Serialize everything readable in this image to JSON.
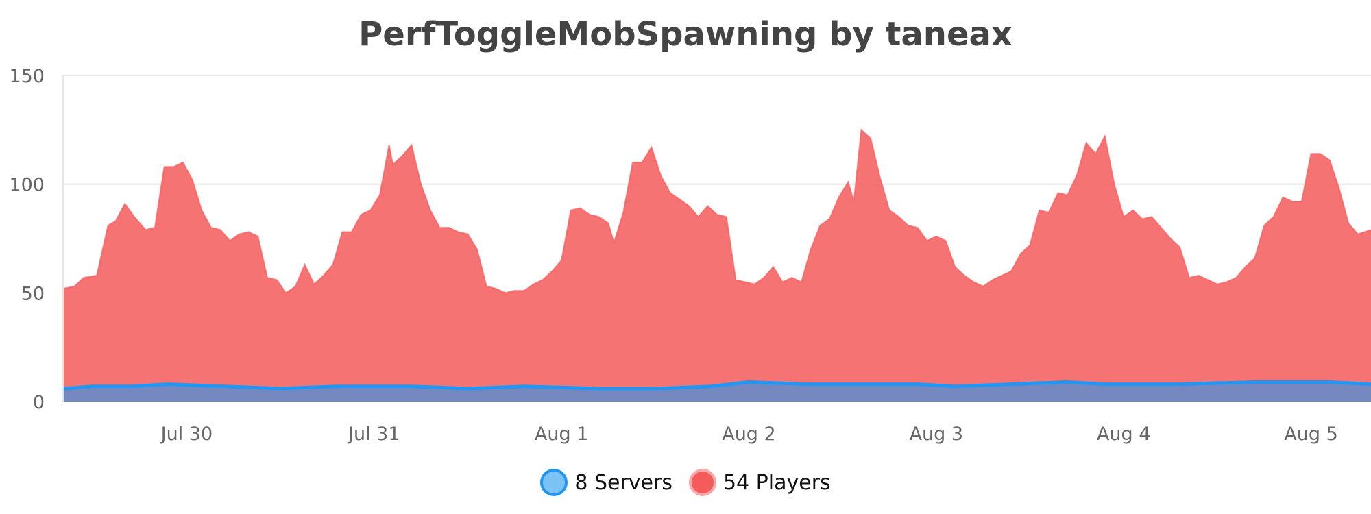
{
  "chart_data": {
    "type": "area",
    "title": "PerfToggleMobSpawning by taneax",
    "xlabel": "",
    "ylabel": "",
    "x_tick_labels": [
      "Jul 30",
      "Jul 31",
      "Aug 1",
      "Aug 2",
      "Aug 3",
      "Aug 4",
      "Aug 5"
    ],
    "x_tick_positions_days": [
      1,
      2,
      3,
      4,
      5,
      6,
      7
    ],
    "x_range_days": [
      0.34,
      7.32
    ],
    "ylim": [
      0,
      150
    ],
    "y_ticks": [
      0,
      50,
      100,
      150
    ],
    "grid": "horizontal",
    "legend_position": "bottom",
    "series": [
      {
        "name": "8 Servers",
        "color": "#2196f3",
        "fill": "rgba(33,150,243,0.6)",
        "points": [
          [
            0.34,
            6
          ],
          [
            0.5,
            7
          ],
          [
            0.7,
            7
          ],
          [
            0.9,
            8
          ],
          [
            1.2,
            7
          ],
          [
            1.5,
            6
          ],
          [
            1.8,
            7
          ],
          [
            2.2,
            7
          ],
          [
            2.5,
            6
          ],
          [
            2.8,
            7
          ],
          [
            3.2,
            6
          ],
          [
            3.5,
            6
          ],
          [
            3.8,
            7
          ],
          [
            4.0,
            9
          ],
          [
            4.3,
            8
          ],
          [
            4.6,
            8
          ],
          [
            4.9,
            8
          ],
          [
            5.1,
            7
          ],
          [
            5.4,
            8
          ],
          [
            5.7,
            9
          ],
          [
            5.9,
            8
          ],
          [
            6.3,
            8
          ],
          [
            6.7,
            9
          ],
          [
            6.9,
            9
          ],
          [
            7.1,
            9
          ],
          [
            7.32,
            8
          ]
        ]
      },
      {
        "name": "54 Players",
        "color": "#f45b5b",
        "fill": "rgba(244,91,91,0.85)",
        "points": [
          [
            0.34,
            52
          ],
          [
            0.4,
            53
          ],
          [
            0.45,
            57
          ],
          [
            0.52,
            58
          ],
          [
            0.58,
            81
          ],
          [
            0.62,
            83
          ],
          [
            0.67,
            91
          ],
          [
            0.72,
            85
          ],
          [
            0.78,
            79
          ],
          [
            0.83,
            80
          ],
          [
            0.88,
            108
          ],
          [
            0.93,
            108
          ],
          [
            0.98,
            110
          ],
          [
            1.03,
            102
          ],
          [
            1.08,
            88
          ],
          [
            1.13,
            80
          ],
          [
            1.18,
            79
          ],
          [
            1.23,
            74
          ],
          [
            1.28,
            77
          ],
          [
            1.33,
            78
          ],
          [
            1.38,
            76
          ],
          [
            1.43,
            57
          ],
          [
            1.48,
            56
          ],
          [
            1.53,
            50
          ],
          [
            1.58,
            53
          ],
          [
            1.63,
            63
          ],
          [
            1.68,
            54
          ],
          [
            1.73,
            58
          ],
          [
            1.78,
            63
          ],
          [
            1.83,
            78
          ],
          [
            1.88,
            78
          ],
          [
            1.93,
            86
          ],
          [
            1.98,
            88
          ],
          [
            2.03,
            95
          ],
          [
            2.08,
            118
          ],
          [
            2.1,
            109
          ],
          [
            2.15,
            113
          ],
          [
            2.2,
            118
          ],
          [
            2.25,
            100
          ],
          [
            2.3,
            88
          ],
          [
            2.35,
            80
          ],
          [
            2.4,
            80
          ],
          [
            2.45,
            78
          ],
          [
            2.5,
            77
          ],
          [
            2.55,
            70
          ],
          [
            2.6,
            53
          ],
          [
            2.65,
            52
          ],
          [
            2.7,
            50
          ],
          [
            2.75,
            51
          ],
          [
            2.8,
            51
          ],
          [
            2.85,
            54
          ],
          [
            2.9,
            56
          ],
          [
            2.95,
            60
          ],
          [
            3.0,
            65
          ],
          [
            3.05,
            88
          ],
          [
            3.1,
            89
          ],
          [
            3.15,
            86
          ],
          [
            3.2,
            85
          ],
          [
            3.25,
            82
          ],
          [
            3.28,
            73
          ],
          [
            3.33,
            87
          ],
          [
            3.38,
            110
          ],
          [
            3.43,
            110
          ],
          [
            3.48,
            117
          ],
          [
            3.53,
            104
          ],
          [
            3.58,
            96
          ],
          [
            3.63,
            93
          ],
          [
            3.68,
            90
          ],
          [
            3.73,
            85
          ],
          [
            3.78,
            90
          ],
          [
            3.83,
            86
          ],
          [
            3.88,
            85
          ],
          [
            3.93,
            56
          ],
          [
            3.98,
            55
          ],
          [
            4.03,
            54
          ],
          [
            4.08,
            57
          ],
          [
            4.13,
            62
          ],
          [
            4.18,
            55
          ],
          [
            4.23,
            57
          ],
          [
            4.28,
            55
          ],
          [
            4.33,
            70
          ],
          [
            4.38,
            81
          ],
          [
            4.43,
            84
          ],
          [
            4.48,
            94
          ],
          [
            4.53,
            101
          ],
          [
            4.56,
            92
          ],
          [
            4.6,
            125
          ],
          [
            4.65,
            121
          ],
          [
            4.7,
            103
          ],
          [
            4.75,
            88
          ],
          [
            4.8,
            85
          ],
          [
            4.85,
            81
          ],
          [
            4.9,
            80
          ],
          [
            4.95,
            74
          ],
          [
            5.0,
            76
          ],
          [
            5.05,
            74
          ],
          [
            5.1,
            62
          ],
          [
            5.15,
            58
          ],
          [
            5.2,
            55
          ],
          [
            5.25,
            53
          ],
          [
            5.3,
            56
          ],
          [
            5.35,
            58
          ],
          [
            5.4,
            60
          ],
          [
            5.45,
            68
          ],
          [
            5.5,
            72
          ],
          [
            5.55,
            88
          ],
          [
            5.6,
            87
          ],
          [
            5.65,
            96
          ],
          [
            5.7,
            95
          ],
          [
            5.75,
            104
          ],
          [
            5.8,
            119
          ],
          [
            5.85,
            114
          ],
          [
            5.9,
            122
          ],
          [
            5.95,
            100
          ],
          [
            6.0,
            85
          ],
          [
            6.05,
            88
          ],
          [
            6.1,
            84
          ],
          [
            6.15,
            85
          ],
          [
            6.2,
            80
          ],
          [
            6.25,
            75
          ],
          [
            6.3,
            71
          ],
          [
            6.35,
            57
          ],
          [
            6.4,
            58
          ],
          [
            6.45,
            56
          ],
          [
            6.5,
            54
          ],
          [
            6.55,
            55
          ],
          [
            6.6,
            57
          ],
          [
            6.65,
            62
          ],
          [
            6.7,
            66
          ],
          [
            6.75,
            81
          ],
          [
            6.8,
            85
          ],
          [
            6.85,
            94
          ],
          [
            6.9,
            92
          ],
          [
            6.95,
            92
          ],
          [
            7.0,
            114
          ],
          [
            7.05,
            114
          ],
          [
            7.1,
            111
          ],
          [
            7.15,
            98
          ],
          [
            7.2,
            82
          ],
          [
            7.25,
            77
          ],
          [
            7.32,
            79
          ]
        ]
      }
    ]
  }
}
